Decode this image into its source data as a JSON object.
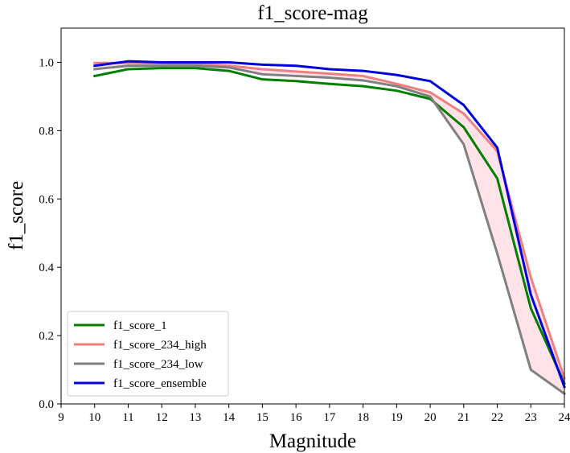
{
  "chart_data": {
    "type": "line",
    "title": "f1_score-mag",
    "xlabel": "Magnitude",
    "ylabel": "f1_score",
    "xlim": [
      9,
      24
    ],
    "ylim": [
      0.0,
      1.1
    ],
    "xticks": [
      "9",
      "10",
      "11",
      "12",
      "13",
      "14",
      "15",
      "16",
      "17",
      "18",
      "19",
      "20",
      "21",
      "22",
      "23",
      "24"
    ],
    "yticks": [
      "0.0",
      "0.2",
      "0.4",
      "0.6",
      "0.8",
      "1.0"
    ],
    "grid": false,
    "legend_position": "lower-left",
    "x": [
      10,
      11,
      12,
      13,
      14,
      15,
      16,
      17,
      18,
      19,
      20,
      21,
      22,
      23,
      24
    ],
    "series": [
      {
        "name": "f1_score_1",
        "color": "#008000",
        "values": [
          0.96,
          0.98,
          0.983,
          0.983,
          0.975,
          0.95,
          0.945,
          0.937,
          0.93,
          0.917,
          0.893,
          0.81,
          0.66,
          0.28,
          0.06
        ]
      },
      {
        "name": "f1_score_234_high",
        "color": "#f08080",
        "values": [
          0.998,
          0.998,
          0.997,
          0.995,
          0.99,
          0.98,
          0.973,
          0.967,
          0.96,
          0.937,
          0.912,
          0.85,
          0.74,
          0.37,
          0.075
        ]
      },
      {
        "name": "f1_score_234_low",
        "color": "#808080",
        "values": [
          0.98,
          0.99,
          0.99,
          0.99,
          0.985,
          0.965,
          0.96,
          0.955,
          0.947,
          0.93,
          0.9,
          0.76,
          0.44,
          0.1,
          0.03
        ]
      },
      {
        "name": "f1_score_ensemble",
        "color": "#0000dd",
        "values": [
          0.99,
          1.003,
          1.0,
          1.0,
          1.0,
          0.993,
          0.99,
          0.98,
          0.975,
          0.963,
          0.945,
          0.875,
          0.75,
          0.32,
          0.05
        ]
      }
    ],
    "fill_between": {
      "upper": "f1_score_234_high",
      "lower": "f1_score_234_low",
      "color": "#ffc0cb",
      "opacity": 0.45
    }
  }
}
